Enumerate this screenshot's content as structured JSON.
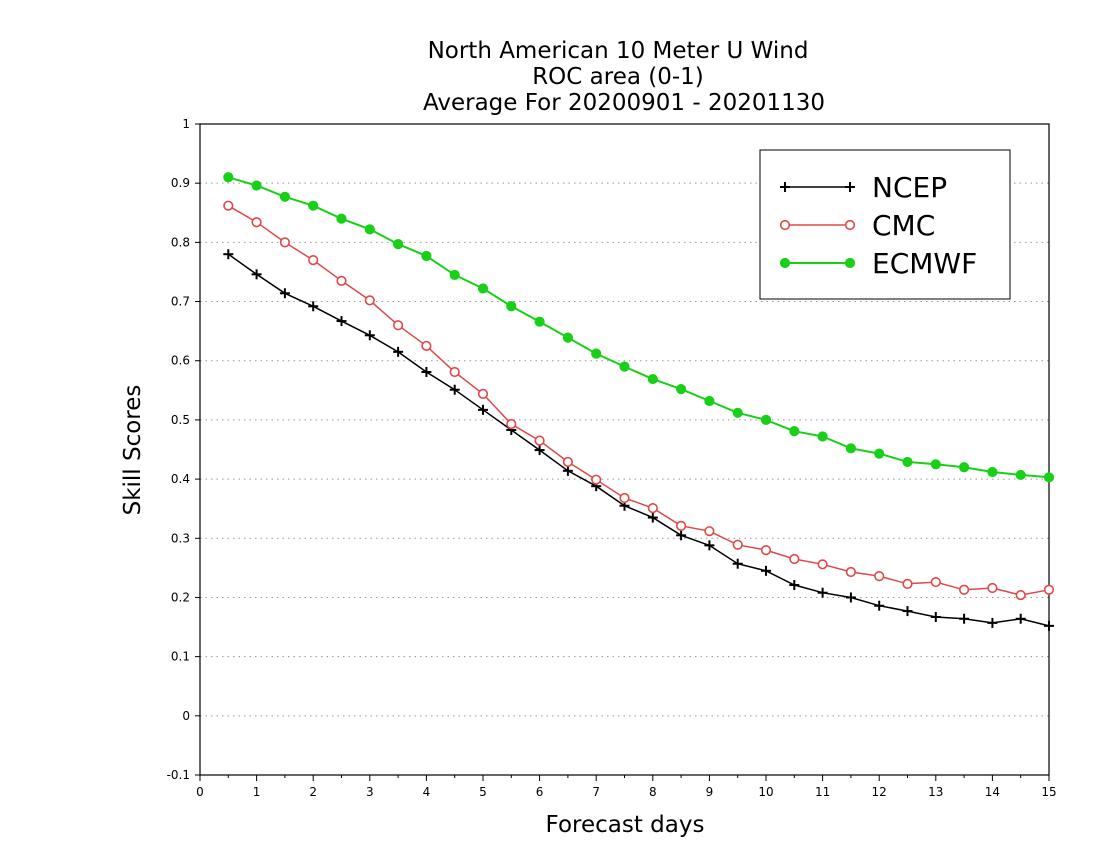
{
  "chart_data": {
    "type": "line",
    "title_lines": [
      "North American 10 Meter U Wind",
      "ROC area (0-1)",
      "Average For 20200901 - 20201130"
    ],
    "xlabel": "Forecast days",
    "ylabel": "Skill Scores",
    "xlim": [
      0,
      15
    ],
    "ylim": [
      -0.1,
      1
    ],
    "x_ticks": [
      "0",
      "1",
      "2",
      "3",
      "4",
      "5",
      "6",
      "7",
      "8",
      "9",
      "10",
      "11",
      "12",
      "13",
      "14",
      "15"
    ],
    "y_ticks": [
      "1",
      "0.9",
      "0.8",
      "0.7",
      "0.6",
      "0.5",
      "0.4",
      "0.3",
      "0.2",
      "0.1",
      "0",
      "-0.1"
    ],
    "y_tick_values": [
      1,
      0.9,
      0.8,
      0.7,
      0.6,
      0.5,
      0.4,
      0.3,
      0.2,
      0.1,
      0,
      -0.1
    ],
    "grid": "horizontal dotted",
    "legend_position": "top-right",
    "x": [
      0.5,
      1,
      1.5,
      2,
      2.5,
      3,
      3.5,
      4,
      4.5,
      5,
      5.5,
      6,
      6.5,
      7,
      7.5,
      8,
      8.5,
      9,
      9.5,
      10,
      10.5,
      11,
      11.5,
      12,
      12.5,
      13,
      13.5,
      14,
      14.5,
      15
    ],
    "series": [
      {
        "name": "NCEP",
        "color": "#000000",
        "marker": "plus",
        "values": [
          0.78,
          0.746,
          0.714,
          0.692,
          0.667,
          0.643,
          0.615,
          0.581,
          0.551,
          0.517,
          0.483,
          0.449,
          0.414,
          0.388,
          0.355,
          0.335,
          0.305,
          0.288,
          0.257,
          0.245,
          0.221,
          0.208,
          0.2,
          0.186,
          0.177,
          0.167,
          0.164,
          0.157,
          0.164,
          0.152
        ]
      },
      {
        "name": "CMC",
        "color": "#e04848",
        "marker": "open-circle",
        "values": [
          0.862,
          0.834,
          0.8,
          0.77,
          0.735,
          0.702,
          0.66,
          0.625,
          0.581,
          0.544,
          0.493,
          0.465,
          0.429,
          0.399,
          0.368,
          0.351,
          0.321,
          0.312,
          0.289,
          0.28,
          0.265,
          0.256,
          0.243,
          0.236,
          0.223,
          0.226,
          0.213,
          0.216,
          0.204,
          0.213
        ]
      },
      {
        "name": "ECMWF",
        "color": "#18d018",
        "marker": "filled-circle",
        "values": [
          0.91,
          0.896,
          0.877,
          0.862,
          0.84,
          0.822,
          0.797,
          0.777,
          0.745,
          0.722,
          0.692,
          0.666,
          0.639,
          0.612,
          0.59,
          0.569,
          0.552,
          0.532,
          0.512,
          0.5,
          0.481,
          0.472,
          0.452,
          0.443,
          0.429,
          0.425,
          0.42,
          0.412,
          0.407,
          0.403
        ]
      }
    ]
  }
}
